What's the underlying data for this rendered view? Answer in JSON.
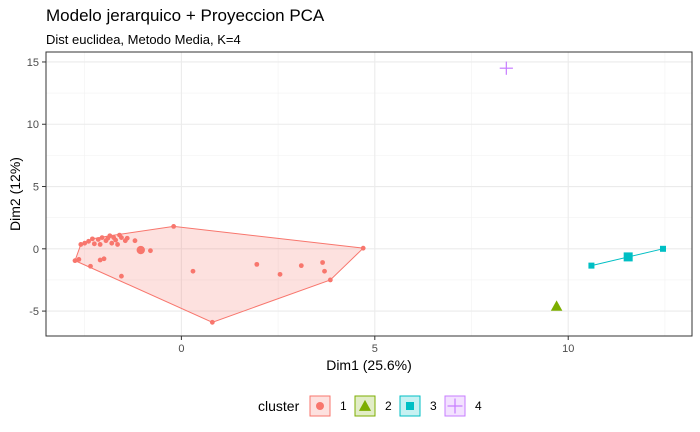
{
  "chart_data": {
    "type": "scatter",
    "title": "Modelo jerarquico + Proyeccion PCA",
    "subtitle": "Dist euclidea, Metodo Media, K=4",
    "xlabel": "Dim1 (25.6%)",
    "ylabel": "Dim2 (12%)",
    "xlim": [
      -3.5,
      13.2
    ],
    "ylim": [
      -7.0,
      15.8
    ],
    "xticks": [
      0,
      5,
      10
    ],
    "yticks": [
      -5,
      0,
      5,
      10,
      15
    ],
    "grid": true,
    "legend": {
      "title": "cluster",
      "position": "bottom"
    },
    "series": [
      {
        "name": "1",
        "color": "#F8766D",
        "shape": "circle",
        "hull": true,
        "points": [
          [
            -2.75,
            -0.95
          ],
          [
            -2.65,
            -0.85
          ],
          [
            -2.6,
            0.35
          ],
          [
            -2.5,
            0.45
          ],
          [
            -2.4,
            0.6
          ],
          [
            -2.3,
            0.8
          ],
          [
            -2.25,
            0.4
          ],
          [
            -2.15,
            0.75
          ],
          [
            -2.1,
            0.35
          ],
          [
            -2.05,
            0.9
          ],
          [
            -1.95,
            0.65
          ],
          [
            -1.9,
            0.85
          ],
          [
            -1.85,
            1.05
          ],
          [
            -1.8,
            0.45
          ],
          [
            -1.75,
            0.9
          ],
          [
            -1.7,
            0.7
          ],
          [
            -1.65,
            0.35
          ],
          [
            -1.6,
            1.1
          ],
          [
            -1.55,
            0.9
          ],
          [
            -1.45,
            0.65
          ],
          [
            -1.4,
            0.85
          ],
          [
            -1.2,
            0.65
          ],
          [
            -2.35,
            -1.4
          ],
          [
            -2.1,
            -0.9
          ],
          [
            -2.0,
            -0.8
          ],
          [
            -1.55,
            -2.2
          ],
          [
            -0.8,
            -0.15
          ],
          [
            -0.2,
            1.8
          ],
          [
            0.3,
            -1.8
          ],
          [
            0.8,
            -5.9
          ],
          [
            1.95,
            -1.25
          ],
          [
            2.55,
            -2.05
          ],
          [
            3.1,
            -1.35
          ],
          [
            3.65,
            -1.1
          ],
          [
            3.7,
            -1.8
          ],
          [
            3.85,
            -2.5
          ],
          [
            4.7,
            0.05
          ]
        ],
        "centroid": [
          -1.05,
          -0.1
        ]
      },
      {
        "name": "2",
        "color": "#7CAE00",
        "shape": "triangle",
        "hull": false,
        "points": [
          [
            9.7,
            -4.6
          ]
        ]
      },
      {
        "name": "3",
        "color": "#00BFC4",
        "shape": "square",
        "hull": true,
        "points": [
          [
            10.6,
            -1.35
          ],
          [
            12.45,
            0.0
          ]
        ],
        "centroid": [
          11.55,
          -0.65
        ]
      },
      {
        "name": "4",
        "color": "#C77CFF",
        "shape": "plus",
        "hull": false,
        "points": [
          [
            8.4,
            14.5
          ]
        ]
      }
    ]
  }
}
